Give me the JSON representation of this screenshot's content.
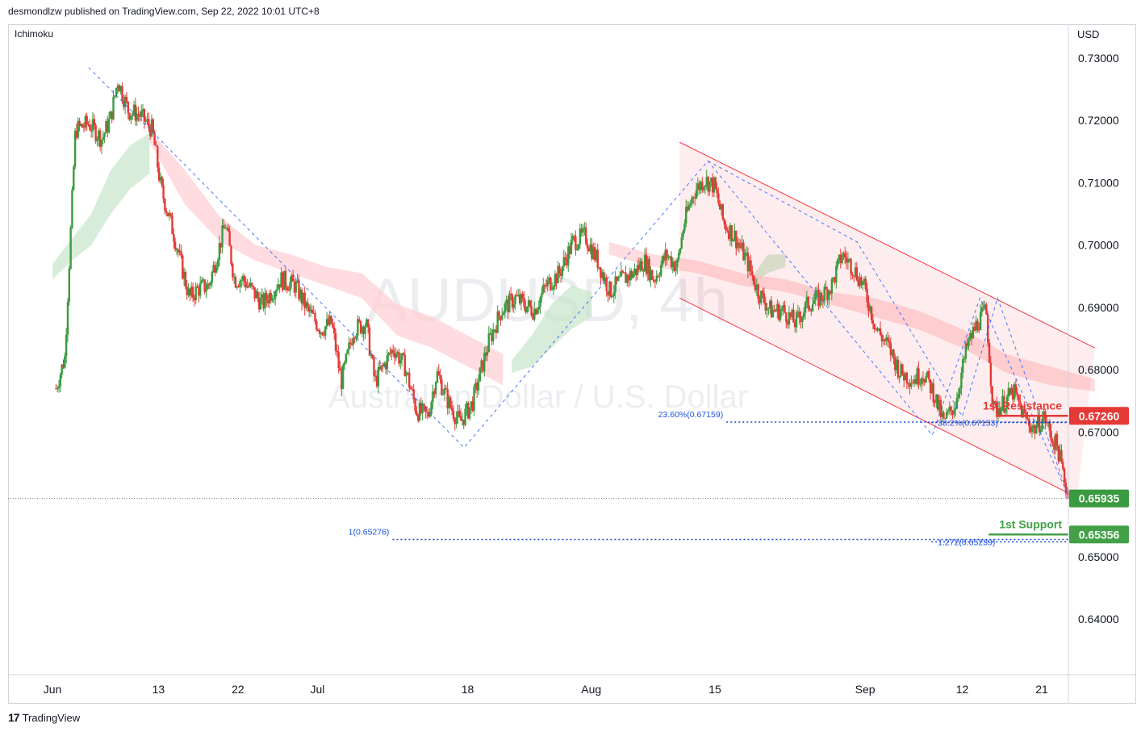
{
  "header": {
    "publisher_line": "desmondlzw published on TradingView.com, Sep 22, 2022 10:01 UTC+8"
  },
  "indicator_label": "Ichimoku",
  "currency_label": "USD",
  "watermark": {
    "symbol": "AUDUSD, 4h",
    "name": "Australian Dollar / U.S. Dollar"
  },
  "footer": {
    "logo": "17",
    "brand": "TradingView"
  },
  "colors": {
    "up": "#26a69a_green",
    "up_hex": "#3a9a3f",
    "down_hex": "#e53935",
    "resistance": "#e53935",
    "support": "#43a047",
    "fib": "#1e53e5",
    "channel": "#f23645",
    "cloud_bull": "#c8e6c9",
    "cloud_bear": "#ffcdd2"
  },
  "chart_data": {
    "type": "candlestick",
    "title": "AUDUSD, 4h",
    "subtitle": "Australian Dollar / U.S. Dollar",
    "y_axis": {
      "label": "USD",
      "ylim": [
        0.632,
        0.733
      ],
      "ticks": [
        "0.73000",
        "0.72000",
        "0.71000",
        "0.70000",
        "0.69000",
        "0.68000",
        "0.67000",
        "0.65000",
        "0.64000"
      ]
    },
    "x_axis": {
      "ticks": [
        {
          "label": "Jun",
          "day": 1
        },
        {
          "label": "13",
          "day": 13
        },
        {
          "label": "22",
          "day": 22
        },
        {
          "label": "Jul",
          "day": 31
        },
        {
          "label": "18",
          "day": 48
        },
        {
          "label": "Aug",
          "day": 62
        },
        {
          "label": "15",
          "day": 76
        },
        {
          "label": "Sep",
          "day": 93
        },
        {
          "label": "12",
          "day": 104
        },
        {
          "label": "21",
          "day": 113
        }
      ]
    },
    "close_path": [
      [
        1.4,
        0.677
      ],
      [
        2.4,
        0.682
      ],
      [
        3.6,
        0.7185
      ],
      [
        5.1,
        0.7195
      ],
      [
        6.6,
        0.717
      ],
      [
        7.6,
        0.7205
      ],
      [
        8.4,
        0.7265
      ],
      [
        9.6,
        0.7215
      ],
      [
        10.8,
        0.721
      ],
      [
        12.3,
        0.7185
      ],
      [
        13.3,
        0.709
      ],
      [
        14.6,
        0.7025
      ],
      [
        16.5,
        0.6915
      ],
      [
        17.5,
        0.693
      ],
      [
        18.7,
        0.6935
      ],
      [
        20.6,
        0.7035
      ],
      [
        21.6,
        0.6945
      ],
      [
        22.6,
        0.6945
      ],
      [
        24.8,
        0.6905
      ],
      [
        26.8,
        0.6945
      ],
      [
        28.5,
        0.6935
      ],
      [
        29.9,
        0.6895
      ],
      [
        31.4,
        0.6865
      ],
      [
        32.6,
        0.6875
      ],
      [
        33.7,
        0.678
      ],
      [
        35.1,
        0.6865
      ],
      [
        36.5,
        0.6875
      ],
      [
        37.5,
        0.678
      ],
      [
        39.6,
        0.6835
      ],
      [
        40.9,
        0.6805
      ],
      [
        42.2,
        0.6735
      ],
      [
        43.5,
        0.6725
      ],
      [
        44.5,
        0.6795
      ],
      [
        45.9,
        0.6745
      ],
      [
        47.1,
        0.6715
      ],
      [
        48.5,
        0.6745
      ],
      [
        50.4,
        0.6845
      ],
      [
        51.8,
        0.6895
      ],
      [
        53.4,
        0.6915
      ],
      [
        55.5,
        0.6895
      ],
      [
        56.9,
        0.6935
      ],
      [
        58.4,
        0.6955
      ],
      [
        59.9,
        0.7005
      ],
      [
        61.3,
        0.7015
      ],
      [
        62.7,
        0.6975
      ],
      [
        64.1,
        0.6925
      ],
      [
        65.5,
        0.6945
      ],
      [
        66.8,
        0.6955
      ],
      [
        68.0,
        0.6975
      ],
      [
        69.1,
        0.6945
      ],
      [
        70.5,
        0.6985
      ],
      [
        71.7,
        0.6965
      ],
      [
        72.5,
        0.7035
      ],
      [
        73.6,
        0.7085
      ],
      [
        74.8,
        0.7105
      ],
      [
        75.9,
        0.7095
      ],
      [
        77.0,
        0.7035
      ],
      [
        78.2,
        0.7015
      ],
      [
        79.6,
        0.6975
      ],
      [
        80.9,
        0.6925
      ],
      [
        82.3,
        0.6895
      ],
      [
        83.7,
        0.6895
      ],
      [
        85.1,
        0.6875
      ],
      [
        86.5,
        0.6905
      ],
      [
        87.9,
        0.6915
      ],
      [
        89.2,
        0.6935
      ],
      [
        90.4,
        0.6985
      ],
      [
        91.6,
        0.6965
      ],
      [
        92.8,
        0.6935
      ],
      [
        94.3,
        0.6865
      ],
      [
        95.7,
        0.6835
      ],
      [
        97.0,
        0.6795
      ],
      [
        98.4,
        0.6785
      ],
      [
        99.6,
        0.6795
      ],
      [
        100.7,
        0.6765
      ],
      [
        101.9,
        0.6715
      ],
      [
        103.2,
        0.6745
      ],
      [
        104.5,
        0.6835
      ],
      [
        105.7,
        0.6875
      ],
      [
        106.7,
        0.6895
      ],
      [
        107.5,
        0.6735
      ],
      [
        108.6,
        0.6745
      ],
      [
        109.8,
        0.6765
      ],
      [
        111.0,
        0.6725
      ],
      [
        112.1,
        0.6705
      ],
      [
        113.3,
        0.6725
      ],
      [
        114.0,
        0.6695
      ],
      [
        114.8,
        0.6675
      ],
      [
        115.6,
        0.662
      ],
      [
        116.1,
        0.65935
      ]
    ],
    "ichimoku_cloud": {
      "bull": [
        {
          "x0": 1,
          "x1": 12,
          "top": [
            0.697,
            0.701,
            0.705,
            0.712,
            0.716,
            0.718
          ],
          "bottom": [
            0.6945,
            0.6975,
            0.7,
            0.705,
            0.709,
            0.7115
          ]
        },
        {
          "x0": 53,
          "x1": 62,
          "top": [
            0.6815,
            0.6855,
            0.6905,
            0.6935,
            0.6925
          ],
          "bottom": [
            0.6795,
            0.6805,
            0.6835,
            0.6865,
            0.6885
          ]
        },
        {
          "x0": 80,
          "x1": 84,
          "top": [
            0.6945,
            0.6985,
            0.6985
          ],
          "bottom": [
            0.6935,
            0.6955,
            0.6965
          ]
        }
      ],
      "bear": [
        {
          "x0": 12,
          "x1": 52,
          "top": [
            0.7185,
            0.712,
            0.7045,
            0.7,
            0.6985,
            0.6965,
            0.6955,
            0.6905,
            0.6885,
            0.6855,
            0.6825
          ],
          "bottom": [
            0.7165,
            0.7065,
            0.7005,
            0.6975,
            0.6955,
            0.6935,
            0.6915,
            0.6855,
            0.6835,
            0.6805,
            0.6775
          ]
        },
        {
          "x0": 64,
          "x1": 119,
          "top": [
            0.7005,
            0.6985,
            0.6975,
            0.6955,
            0.6945,
            0.6925,
            0.6915,
            0.6895,
            0.6865,
            0.6825,
            0.6805,
            0.6785
          ],
          "bottom": [
            0.6985,
            0.6965,
            0.6955,
            0.6935,
            0.6925,
            0.6905,
            0.6885,
            0.6865,
            0.6835,
            0.6795,
            0.6775,
            0.6765
          ]
        }
      ]
    },
    "channel": {
      "upper": [
        [
          72.0,
          0.7165
        ],
        [
          119.0,
          0.6835
        ]
      ],
      "lower": [
        [
          72.0,
          0.6915
        ],
        [
          117.0,
          0.6595
        ]
      ]
    },
    "zigzag": [
      [
        5.1,
        0.7285
      ],
      [
        47.6,
        0.6675
      ],
      [
        75.2,
        0.7135
      ],
      [
        100.6,
        0.6695
      ],
      [
        106.0,
        0.6915
      ],
      [
        116.1,
        0.6595
      ]
    ],
    "zigzag_secondary": [
      [
        75.2,
        0.7135
      ],
      [
        92.1,
        0.7005
      ],
      [
        104.0,
        0.6725
      ],
      [
        108.0,
        0.6915
      ],
      [
        116.1,
        0.6595
      ]
    ],
    "fibonacci": [
      {
        "label": "23.60%(0.67159)",
        "value": 0.67159,
        "x_start": 77.3
      },
      {
        "label": "38.2%(0.67153)",
        "value": 0.67153,
        "x_start": 100.5
      },
      {
        "label": "1(0.65276)",
        "value": 0.65276,
        "x_start": 39.5
      },
      {
        "label": "1.272(0.65239)",
        "value": 0.65239,
        "x_start": 100.5
      }
    ],
    "levels": [
      {
        "name": "1st Resistance",
        "value": 0.6726,
        "label": "0.67260",
        "color": "#e53935"
      },
      {
        "name": "1st Support",
        "value": 0.65356,
        "label": "0.65356",
        "color": "#43a047"
      }
    ],
    "last_price": {
      "value": 0.65935,
      "label": "0.65935"
    }
  }
}
